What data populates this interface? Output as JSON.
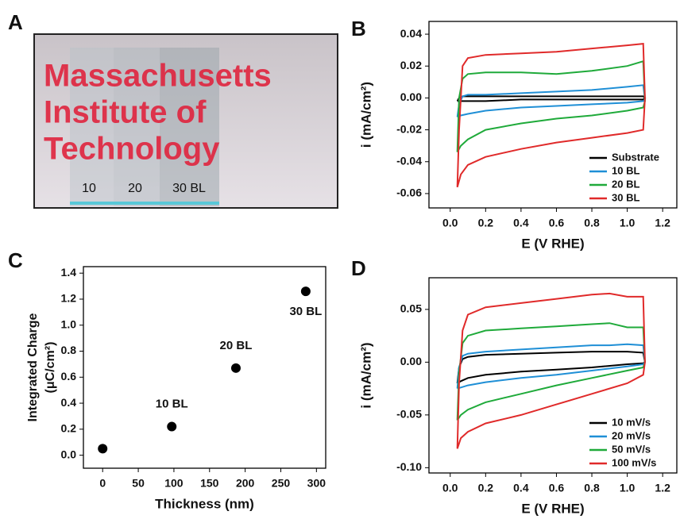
{
  "chart_data": [
    {
      "type": "photo",
      "label": "A",
      "texts": [
        "Massachusetts",
        "Institute of",
        "Technology"
      ],
      "strip_labels": [
        "10",
        "20",
        "30 BL"
      ]
    },
    {
      "type": "line",
      "label": "B",
      "x_label": "E (V RHE)",
      "y_label": "i (mA/cm²)",
      "xlim": [
        -0.12,
        1.28
      ],
      "ylim": [
        -0.069,
        0.048
      ],
      "xticks": [
        {
          "value": 0.0,
          "label": "0.0"
        },
        0.2,
        0.4,
        0.6,
        0.8,
        {
          "value": 1.0,
          "label": "1.0"
        },
        1.2
      ],
      "yticks": [
        -0.06,
        -0.04,
        -0.02,
        {
          "value": 0.0,
          "label": "0.00"
        },
        0.02,
        0.04
      ],
      "legend": "lower right",
      "series": [
        {
          "name": "Substrate",
          "color": "#000000",
          "x": [
            0.04,
            0.05,
            0.07,
            0.1,
            0.2,
            0.4,
            0.6,
            0.8,
            1.0,
            1.09,
            1.1,
            1.09,
            1.0,
            0.8,
            0.6,
            0.4,
            0.2,
            0.1,
            0.06,
            0.04
          ],
          "values": [
            -0.002,
            0.0,
            0.001,
            0.001,
            0.001,
            0.001,
            0.001,
            0.001,
            0.001,
            0.001,
            0.0,
            -0.001,
            -0.001,
            -0.001,
            -0.001,
            -0.001,
            -0.002,
            -0.002,
            -0.002,
            -0.002
          ]
        },
        {
          "name": "10 BL",
          "color": "#1f8fd6",
          "x": [
            0.04,
            0.05,
            0.07,
            0.1,
            0.2,
            0.4,
            0.6,
            0.8,
            1.0,
            1.09,
            1.1,
            1.09,
            1.0,
            0.8,
            0.6,
            0.4,
            0.2,
            0.1,
            0.06,
            0.04
          ],
          "values": [
            -0.012,
            -0.004,
            0.001,
            0.002,
            0.002,
            0.003,
            0.004,
            0.005,
            0.007,
            0.008,
            -0.001,
            -0.002,
            -0.003,
            -0.004,
            -0.005,
            -0.006,
            -0.008,
            -0.01,
            -0.011,
            -0.012
          ]
        },
        {
          "name": "20 BL",
          "color": "#1faa3a",
          "x": [
            0.04,
            0.05,
            0.07,
            0.1,
            0.2,
            0.4,
            0.6,
            0.8,
            1.0,
            1.09,
            1.1,
            1.09,
            1.0,
            0.8,
            0.6,
            0.4,
            0.2,
            0.1,
            0.06,
            0.04
          ],
          "values": [
            -0.034,
            0.0,
            0.012,
            0.015,
            0.016,
            0.016,
            0.015,
            0.017,
            0.02,
            0.023,
            -0.002,
            -0.006,
            -0.008,
            -0.011,
            -0.013,
            -0.016,
            -0.02,
            -0.026,
            -0.03,
            -0.034
          ]
        },
        {
          "name": "30 BL",
          "color": "#e02a2a",
          "x": [
            0.04,
            0.05,
            0.07,
            0.1,
            0.2,
            0.4,
            0.6,
            0.8,
            1.0,
            1.09,
            1.1,
            1.09,
            1.0,
            0.8,
            0.6,
            0.4,
            0.2,
            0.1,
            0.06,
            0.04
          ],
          "values": [
            -0.056,
            -0.02,
            0.02,
            0.025,
            0.027,
            0.028,
            0.029,
            0.031,
            0.033,
            0.034,
            0.0,
            -0.02,
            -0.022,
            -0.025,
            -0.028,
            -0.032,
            -0.037,
            -0.042,
            -0.048,
            -0.056
          ]
        }
      ]
    },
    {
      "type": "scatter",
      "label": "C",
      "x_label": "Thickness (nm)",
      "y_label": [
        "Integrated Charge",
        "(μC/cm²)"
      ],
      "xlim": [
        -27,
        313
      ],
      "ylim": [
        -0.1,
        1.45
      ],
      "xticks": [
        0,
        50,
        100,
        150,
        200,
        250,
        300
      ],
      "yticks": [
        {
          "value": 0.0,
          "label": "0.0"
        },
        0.2,
        0.4,
        0.6,
        0.8,
        {
          "value": 1.0,
          "label": "1.0"
        },
        1.2,
        1.4
      ],
      "color": "#000000",
      "x": [
        0,
        97,
        187,
        285
      ],
      "values": [
        0.05,
        0.22,
        0.67,
        1.26
      ],
      "point_labels": [
        null,
        "10 BL",
        "20 BL",
        "30 BL"
      ]
    },
    {
      "type": "line",
      "label": "D",
      "x_label": "E (V RHE)",
      "y_label": "i (mA/cm²)",
      "xlim": [
        -0.12,
        1.28
      ],
      "ylim": [
        -0.105,
        0.08
      ],
      "xticks": [
        {
          "value": 0.0,
          "label": "0.0"
        },
        0.2,
        0.4,
        0.6,
        0.8,
        {
          "value": 1.0,
          "label": "1.0"
        },
        1.2
      ],
      "yticks": [
        {
          "value": -0.1,
          "label": "-0.10"
        },
        -0.05,
        {
          "value": 0.0,
          "label": "0.00"
        },
        0.05
      ],
      "legend": "lower right",
      "series": [
        {
          "name": "10 mV/s",
          "color": "#000000",
          "x": [
            0.04,
            0.05,
            0.07,
            0.1,
            0.2,
            0.4,
            0.6,
            0.8,
            0.9,
            1.0,
            1.09,
            1.1,
            1.09,
            1.0,
            0.8,
            0.6,
            0.4,
            0.2,
            0.1,
            0.06,
            0.04
          ],
          "values": [
            -0.02,
            -0.005,
            0.003,
            0.005,
            0.007,
            0.008,
            0.009,
            0.01,
            0.01,
            0.01,
            0.009,
            0.0,
            -0.001,
            -0.002,
            -0.005,
            -0.007,
            -0.009,
            -0.012,
            -0.015,
            -0.018,
            -0.02
          ]
        },
        {
          "name": "20 mV/s",
          "color": "#1f8fd6",
          "x": [
            0.04,
            0.05,
            0.07,
            0.1,
            0.2,
            0.4,
            0.6,
            0.8,
            0.9,
            1.0,
            1.09,
            1.1,
            1.09,
            1.0,
            0.8,
            0.6,
            0.4,
            0.2,
            0.1,
            0.06,
            0.04
          ],
          "values": [
            -0.025,
            -0.005,
            0.006,
            0.008,
            0.01,
            0.012,
            0.014,
            0.016,
            0.016,
            0.017,
            0.016,
            0.0,
            -0.002,
            -0.004,
            -0.008,
            -0.012,
            -0.015,
            -0.019,
            -0.022,
            -0.024,
            -0.025
          ]
        },
        {
          "name": "50 mV/s",
          "color": "#1faa3a",
          "x": [
            0.04,
            0.05,
            0.07,
            0.1,
            0.2,
            0.4,
            0.6,
            0.8,
            0.9,
            1.0,
            1.09,
            1.1,
            1.09,
            1.0,
            0.8,
            0.6,
            0.4,
            0.2,
            0.1,
            0.06,
            0.04
          ],
          "values": [
            -0.055,
            -0.01,
            0.018,
            0.025,
            0.03,
            0.032,
            0.034,
            0.036,
            0.037,
            0.033,
            0.033,
            0.0,
            -0.005,
            -0.008,
            -0.015,
            -0.022,
            -0.03,
            -0.038,
            -0.045,
            -0.05,
            -0.055
          ]
        },
        {
          "name": "100 mV/s",
          "color": "#e02a2a",
          "x": [
            0.04,
            0.05,
            0.07,
            0.1,
            0.2,
            0.4,
            0.6,
            0.8,
            0.9,
            1.0,
            1.09,
            1.1,
            1.09,
            1.0,
            0.8,
            0.6,
            0.4,
            0.2,
            0.1,
            0.06,
            0.04
          ],
          "values": [
            -0.082,
            -0.02,
            0.03,
            0.045,
            0.052,
            0.056,
            0.06,
            0.064,
            0.065,
            0.062,
            0.062,
            0.0,
            -0.012,
            -0.02,
            -0.03,
            -0.04,
            -0.05,
            -0.058,
            -0.066,
            -0.072,
            -0.082
          ]
        }
      ]
    }
  ]
}
